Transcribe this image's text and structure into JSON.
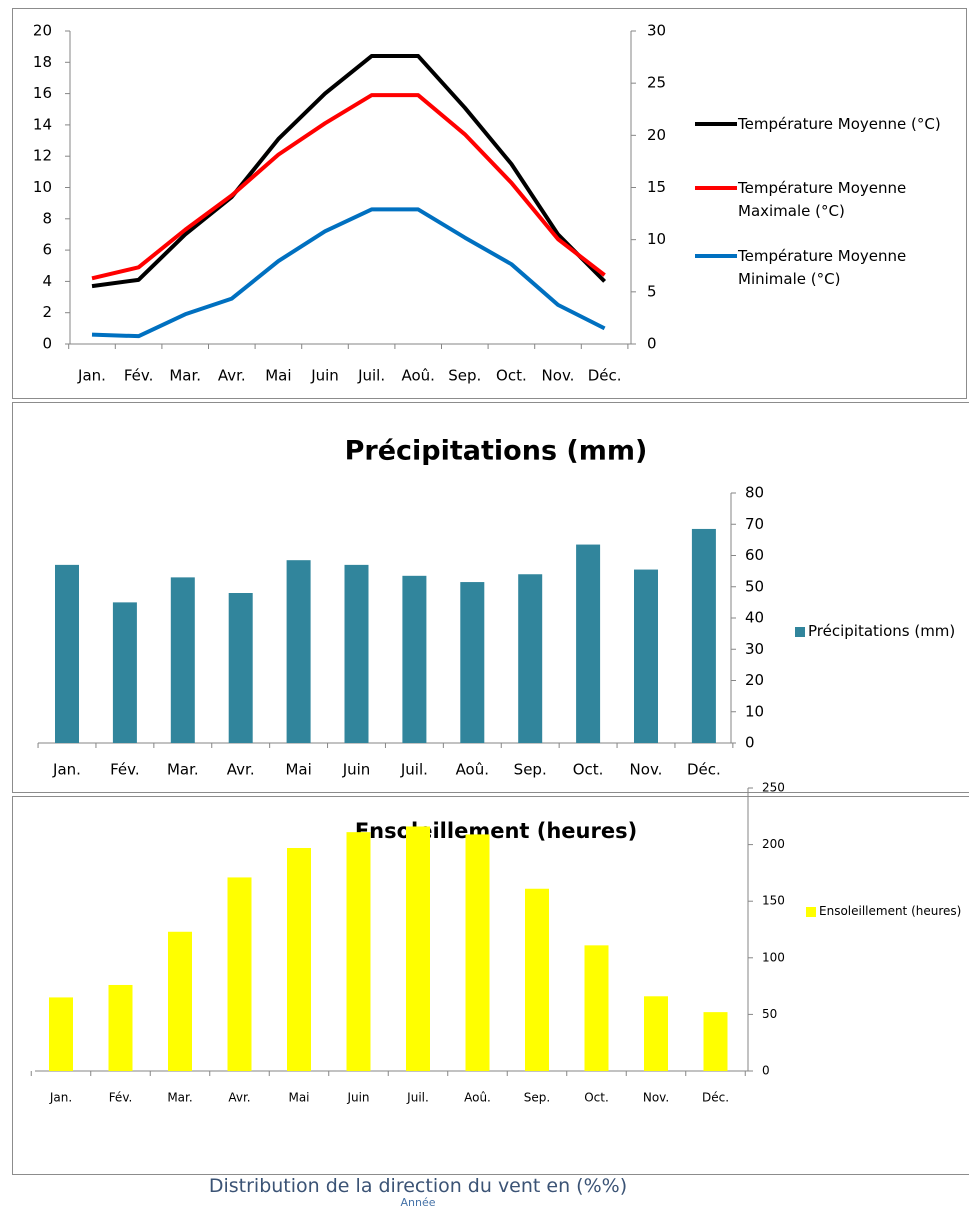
{
  "chart_data": [
    {
      "type": "line",
      "categories": [
        "Jan.",
        "Fév.",
        "Mar.",
        "Avr.",
        "Mai",
        "Juin",
        "Juil.",
        "Aoû.",
        "Sep.",
        "Oct.",
        "Nov.",
        "Déc."
      ],
      "series": [
        {
          "name": "Température Moyenne (°C)",
          "color": "#000000",
          "values": [
            3.7,
            4.1,
            7.0,
            9.4,
            13.1,
            16.0,
            18.4,
            18.4,
            15.1,
            11.5,
            7.0,
            4.0
          ]
        },
        {
          "name": "Température Moyenne Maximale (°C)",
          "color": "#ff0000",
          "values": [
            4.2,
            4.9,
            7.3,
            9.5,
            12.1,
            14.1,
            15.9,
            15.9,
            13.4,
            10.3,
            6.7,
            4.4
          ]
        },
        {
          "name": "Température Moyenne Minimale (°C)",
          "color": "#0070c0",
          "values": [
            0.6,
            0.5,
            1.9,
            2.9,
            5.3,
            7.2,
            8.6,
            8.6,
            6.8,
            5.1,
            2.5,
            1.0
          ]
        }
      ],
      "ylim": [
        0,
        20
      ],
      "yticks": [
        0,
        2,
        4,
        6,
        8,
        10,
        12,
        14,
        16,
        18,
        20
      ],
      "y2lim": [
        0,
        30
      ],
      "y2ticks": [
        0,
        5,
        10,
        15,
        20,
        25,
        30
      ],
      "legend": "right"
    },
    {
      "type": "bar",
      "title": "Précipitations (mm)",
      "categories": [
        "Jan.",
        "Fév.",
        "Mar.",
        "Avr.",
        "Mai",
        "Juin",
        "Juil.",
        "Aoû.",
        "Sep.",
        "Oct.",
        "Nov.",
        "Déc."
      ],
      "series": [
        {
          "name": "Précipitations (mm)",
          "color": "#31859c",
          "values": [
            57,
            45,
            53,
            48,
            58.5,
            57,
            53.5,
            51.5,
            54,
            63.5,
            55.5,
            68.5
          ]
        }
      ],
      "ylim": [
        0,
        80
      ],
      "yticks": [
        0,
        10,
        20,
        30,
        40,
        50,
        60,
        70,
        80
      ],
      "y_axis_side": "right",
      "legend": "right"
    },
    {
      "type": "bar",
      "title": "Ensoleillement (heures)",
      "categories": [
        "Jan.",
        "Fév.",
        "Mar.",
        "Avr.",
        "Mai",
        "Juin",
        "Juil.",
        "Aoû.",
        "Sep.",
        "Oct.",
        "Nov.",
        "Déc."
      ],
      "series": [
        {
          "name": "Ensoleillement (heures)",
          "color": "#ffff00",
          "values": [
            65,
            76,
            123,
            171,
            197,
            211,
            216,
            209,
            161,
            111,
            66,
            52
          ]
        }
      ],
      "ylim": [
        0,
        250
      ],
      "yticks": [
        0,
        50,
        100,
        150,
        200,
        250
      ],
      "y_axis_side": "right",
      "legend": "right"
    }
  ],
  "footer": {
    "title": "Distribution de la direction du vent en (%%)",
    "subtitle": "Année"
  }
}
